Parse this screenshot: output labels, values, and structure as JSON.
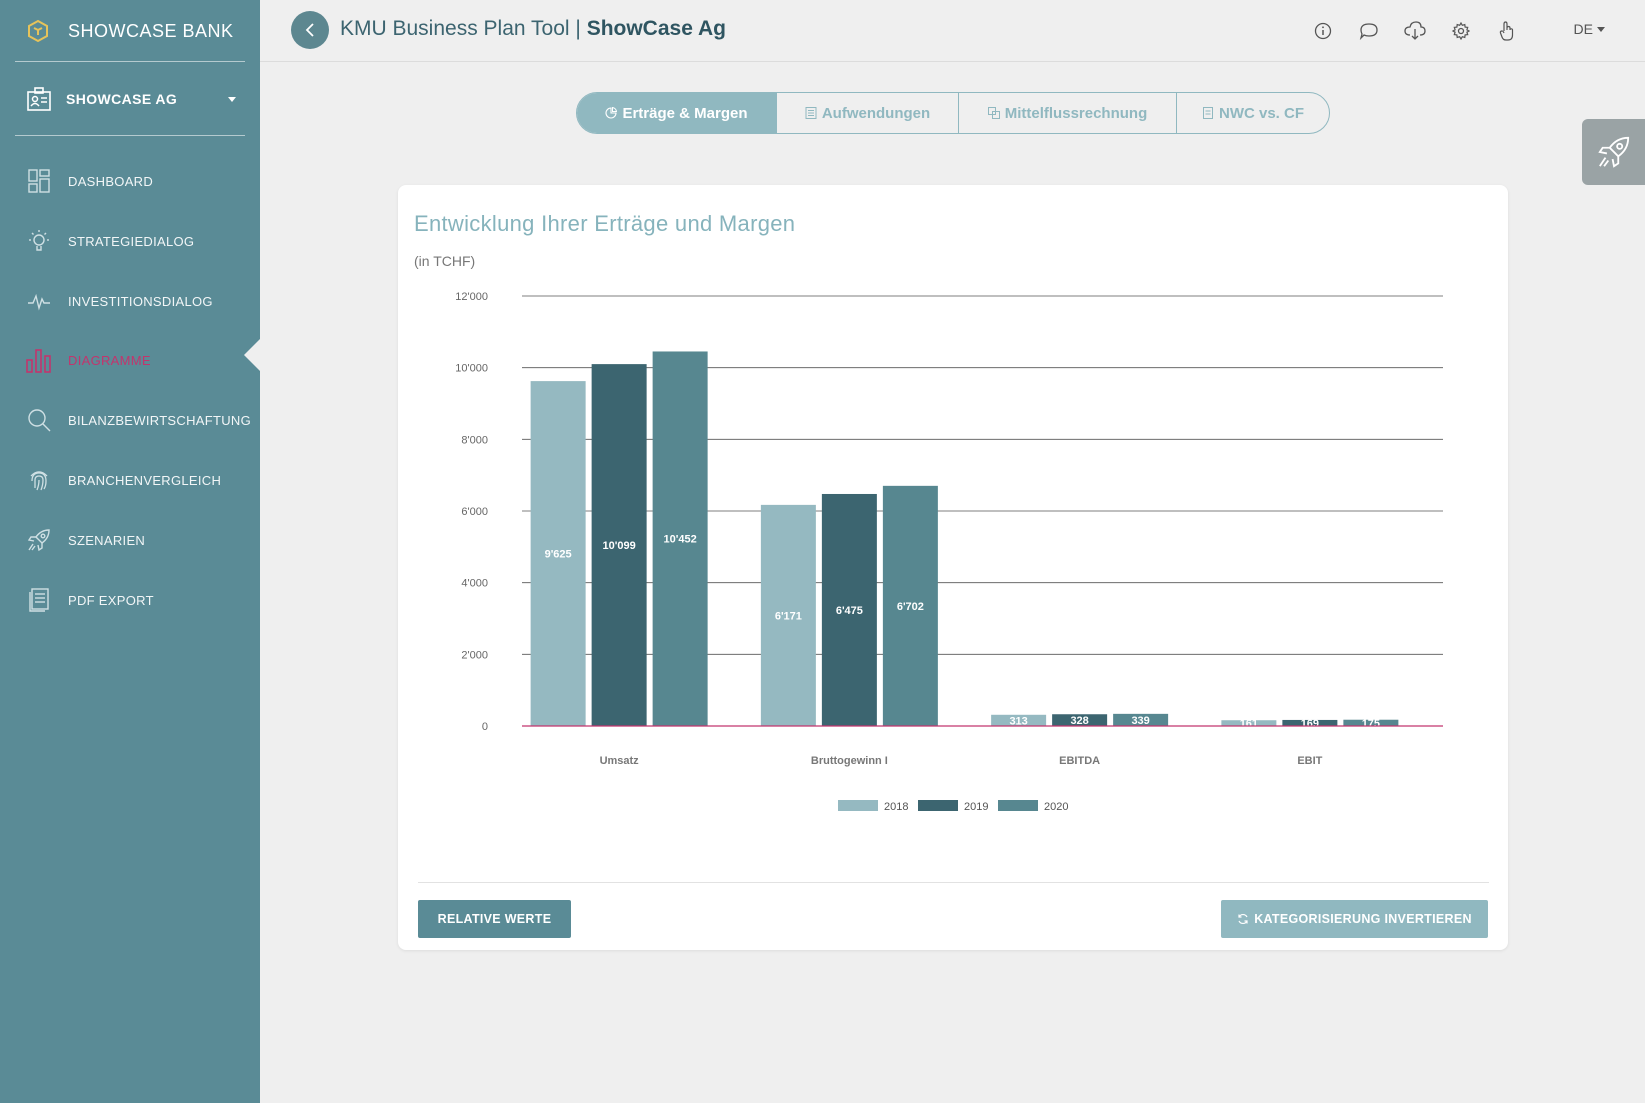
{
  "sidebar": {
    "bank_name": "SHOWCASE BANK",
    "company": "SHOWCASE AG",
    "items": [
      {
        "label": "DASHBOARD",
        "icon": "dashboard-icon"
      },
      {
        "label": "STRATEGIEDIALOG",
        "icon": "lightbulb-icon"
      },
      {
        "label": "INVESTITIONSDIALOG",
        "icon": "pulse-icon"
      },
      {
        "label": "DIAGRAMME",
        "icon": "bar-chart-icon",
        "active": true
      },
      {
        "label": "BILANZBEWIRTSCHAFTUNG",
        "icon": "search-icon"
      },
      {
        "label": "BRANCHENVERGLEICH",
        "icon": "fingerprint-icon"
      },
      {
        "label": "SZENARIEN",
        "icon": "rocket-icon"
      },
      {
        "label": "PDF EXPORT",
        "icon": "document-icon"
      }
    ]
  },
  "header": {
    "title_prefix": "KMU Business Plan Tool | ",
    "title_company": "ShowCase Ag",
    "icons": [
      "info-icon",
      "chat-icon",
      "cloud-download-icon",
      "gear-icon",
      "hand-pointer-icon"
    ],
    "language": "DE"
  },
  "tabs": [
    {
      "label": "Erträge & Margen",
      "active": true
    },
    {
      "label": "Aufwendungen",
      "active": false
    },
    {
      "label": "Mittelflussrechnung",
      "active": false
    },
    {
      "label": "NWC vs. CF",
      "active": false
    }
  ],
  "card": {
    "title": "Entwicklung Ihrer Erträge und Margen",
    "subtitle": "(in TCHF)",
    "btn_relative": "RELATIVE WERTE",
    "btn_invert": "KATEGORISIERUNG INVERTIEREN"
  },
  "colors": {
    "sidebar": "#5a8b96",
    "active_nav": "#c2356d",
    "accent_light": "#90b8c0",
    "zero_line": "#c2356d"
  },
  "chart_data": {
    "type": "bar",
    "categories": [
      "Umsatz",
      "Bruttogewinn I",
      "EBITDA",
      "EBIT"
    ],
    "series": [
      {
        "name": "2018",
        "color": "#95b9c1",
        "values": [
          9625,
          6171,
          313,
          161
        ]
      },
      {
        "name": "2019",
        "color": "#3c6570",
        "values": [
          10099,
          6475,
          328,
          169
        ]
      },
      {
        "name": "2020",
        "color": "#578790",
        "values": [
          10452,
          6702,
          339,
          175
        ]
      }
    ],
    "value_labels": [
      [
        "9'625",
        "6'171",
        "313",
        "161"
      ],
      [
        "10'099",
        "6'475",
        "328",
        "169"
      ],
      [
        "10'452",
        "6'702",
        "339",
        "175"
      ]
    ],
    "ylim": [
      0,
      12000
    ],
    "yticks": [
      0,
      2000,
      4000,
      6000,
      8000,
      10000,
      12000
    ],
    "ytick_labels": [
      "0",
      "2'000",
      "4'000",
      "6'000",
      "8'000",
      "10'000",
      "12'000"
    ],
    "grid": true,
    "legend": "bottom-center"
  }
}
